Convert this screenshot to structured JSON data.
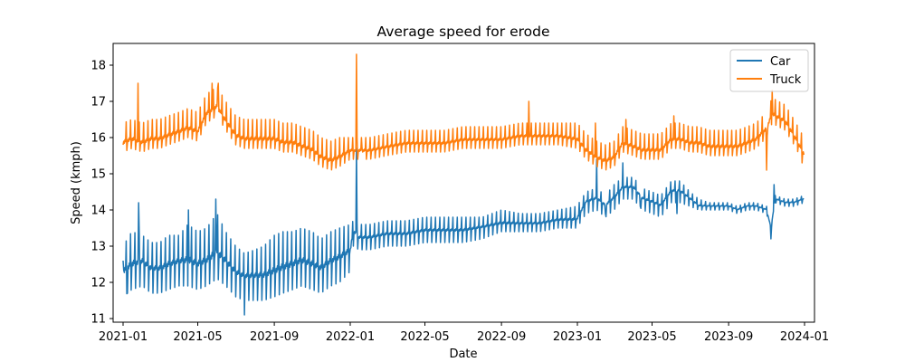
{
  "chart_data": {
    "type": "line",
    "title": "Average speed for erode",
    "xlabel": "Date",
    "ylabel": "Speed (kmph)",
    "xlim": [
      "2020-12-16",
      "2024-01-17"
    ],
    "ylim": [
      10.9,
      18.6
    ],
    "x_ticks": [
      "2021-01",
      "2021-05",
      "2021-09",
      "2022-01",
      "2022-05",
      "2022-09",
      "2023-01",
      "2023-05",
      "2023-09",
      "2024-01"
    ],
    "y_ticks": [
      "11",
      "12",
      "13",
      "14",
      "15",
      "16",
      "17",
      "18"
    ],
    "legend_position": "upper right",
    "grid": false,
    "resolution": "daily",
    "series": [
      {
        "name": "Car",
        "color": "#1f77b4",
        "dates": [
          "2021-01-01",
          "2021-01-15",
          "2021-02-01",
          "2021-02-15",
          "2021-03-01",
          "2021-03-15",
          "2021-04-01",
          "2021-04-15",
          "2021-05-01",
          "2021-05-15",
          "2021-06-01",
          "2021-06-15",
          "2021-07-01",
          "2021-07-15",
          "2021-08-01",
          "2021-08-15",
          "2021-09-01",
          "2021-09-15",
          "2021-10-01",
          "2021-10-15",
          "2021-11-01",
          "2021-11-15",
          "2021-12-01",
          "2021-12-15",
          "2022-01-01",
          "2022-01-06",
          "2022-01-15",
          "2022-02-01",
          "2022-03-01",
          "2022-04-01",
          "2022-05-01",
          "2022-06-01",
          "2022-07-01",
          "2022-08-01",
          "2022-09-01",
          "2022-10-01",
          "2022-11-01",
          "2022-12-01",
          "2022-12-31",
          "2023-01-15",
          "2023-02-01",
          "2023-02-15",
          "2023-03-01",
          "2023-03-15",
          "2023-04-01",
          "2023-04-15",
          "2023-05-01",
          "2023-05-15",
          "2023-06-01",
          "2023-06-15",
          "2023-07-01",
          "2023-07-15",
          "2023-08-01",
          "2023-08-15",
          "2023-09-01",
          "2023-09-15",
          "2023-10-01",
          "2023-10-15",
          "2023-11-01",
          "2023-11-08",
          "2023-11-15",
          "2023-12-01",
          "2023-12-15",
          "2023-12-31"
        ],
        "values": [
          12.2,
          12.4,
          12.5,
          12.3,
          12.3,
          12.4,
          12.5,
          12.5,
          12.4,
          12.5,
          12.7,
          12.5,
          12.2,
          12.1,
          12.1,
          12.1,
          12.2,
          12.3,
          12.4,
          12.5,
          12.4,
          12.3,
          12.5,
          12.6,
          12.8,
          13.4,
          13.2,
          13.2,
          13.3,
          13.3,
          13.4,
          13.4,
          13.4,
          13.5,
          13.6,
          13.6,
          13.6,
          13.7,
          13.7,
          14.2,
          14.3,
          14.1,
          14.3,
          14.6,
          14.6,
          14.3,
          14.2,
          14.1,
          14.5,
          14.5,
          14.3,
          14.1,
          14.1,
          14.1,
          14.1,
          14.0,
          14.1,
          14.1,
          14.0,
          13.5,
          14.3,
          14.2,
          14.2,
          14.3
        ],
        "weekly_dip": [
          0.6,
          0.6,
          0.6,
          0.6,
          0.6,
          0.6,
          0.6,
          0.6,
          0.6,
          0.6,
          0.6,
          0.6,
          0.6,
          0.6,
          0.6,
          0.6,
          0.6,
          0.6,
          0.6,
          0.6,
          0.6,
          0.6,
          0.6,
          0.6,
          0.5,
          0.4,
          0.3,
          0.3,
          0.3,
          0.3,
          0.3,
          0.3,
          0.3,
          0.3,
          0.2,
          0.2,
          0.2,
          0.2,
          0.2,
          0.3,
          0.3,
          0.3,
          0.3,
          0.3,
          0.3,
          0.3,
          0.3,
          0.3,
          0.3,
          0.3,
          0.2,
          0.1,
          0.1,
          0.1,
          0.1,
          0.1,
          0.1,
          0.1,
          0.1,
          0.1,
          0.1,
          0.1,
          0.1,
          0.1
        ],
        "weekly_peak": [
          0.8,
          1.0,
          0.8,
          0.8,
          0.8,
          0.9,
          0.8,
          1.1,
          1.0,
          1.0,
          1.2,
          0.9,
          0.8,
          0.7,
          0.8,
          0.9,
          1.1,
          1.1,
          1.0,
          1.0,
          1.0,
          0.9,
          0.9,
          0.9,
          0.8,
          0.3,
          0.4,
          0.4,
          0.4,
          0.4,
          0.4,
          0.4,
          0.4,
          0.3,
          0.4,
          0.3,
          0.3,
          0.3,
          0.4,
          0.3,
          0.3,
          0.3,
          0.4,
          0.3,
          0.3,
          0.3,
          0.3,
          0.3,
          0.3,
          0.3,
          0.2,
          0.2,
          0.1,
          0.1,
          0.1,
          0.1,
          0.1,
          0.1,
          0.1,
          0.1,
          0.1,
          0.1,
          0.1,
          0.1
        ],
        "spikes": [
          {
            "date": "2021-01-01",
            "value": 12.6
          },
          {
            "date": "2021-01-08",
            "value": 11.7
          },
          {
            "date": "2021-01-26",
            "value": 14.2
          },
          {
            "date": "2021-05-30",
            "value": 14.3
          },
          {
            "date": "2021-04-16",
            "value": 14.0
          },
          {
            "date": "2021-07-15",
            "value": 11.1
          },
          {
            "date": "2022-01-11",
            "value": 15.7
          },
          {
            "date": "2023-02-01",
            "value": 15.4
          },
          {
            "date": "2023-02-15",
            "value": 13.9
          },
          {
            "date": "2023-03-15",
            "value": 15.3
          },
          {
            "date": "2023-04-12",
            "value": 14.1
          },
          {
            "date": "2023-06-10",
            "value": 13.9
          },
          {
            "date": "2023-11-08",
            "value": 13.2
          },
          {
            "date": "2023-11-13",
            "value": 14.7
          }
        ]
      },
      {
        "name": "Truck",
        "color": "#ff7f0e",
        "dates": [
          "2021-01-01",
          "2021-01-15",
          "2021-02-01",
          "2021-02-15",
          "2021-03-01",
          "2021-03-15",
          "2021-04-01",
          "2021-04-15",
          "2021-05-01",
          "2021-05-15",
          "2021-06-01",
          "2021-06-15",
          "2021-07-01",
          "2021-07-15",
          "2021-08-01",
          "2021-08-15",
          "2021-09-01",
          "2021-09-15",
          "2021-10-01",
          "2021-10-15",
          "2021-11-01",
          "2021-11-15",
          "2021-12-01",
          "2021-12-15",
          "2022-01-01",
          "2022-01-15",
          "2022-02-01",
          "2022-03-01",
          "2022-04-01",
          "2022-05-01",
          "2022-06-01",
          "2022-07-01",
          "2022-08-01",
          "2022-09-01",
          "2022-10-01",
          "2022-11-01",
          "2022-12-01",
          "2023-01-01",
          "2023-01-15",
          "2023-02-01",
          "2023-02-15",
          "2023-03-01",
          "2023-03-15",
          "2023-04-01",
          "2023-04-15",
          "2023-05-01",
          "2023-05-15",
          "2023-06-01",
          "2023-06-15",
          "2023-07-01",
          "2023-07-15",
          "2023-08-01",
          "2023-08-15",
          "2023-09-01",
          "2023-09-15",
          "2023-10-01",
          "2023-10-15",
          "2023-11-01",
          "2023-11-10",
          "2023-11-20",
          "2023-12-01",
          "2023-12-15",
          "2023-12-31"
        ],
        "values": [
          15.8,
          15.9,
          15.8,
          15.9,
          15.9,
          16.0,
          16.1,
          16.2,
          16.1,
          16.6,
          16.8,
          16.4,
          16.0,
          15.9,
          15.9,
          15.9,
          15.9,
          15.8,
          15.8,
          15.7,
          15.6,
          15.4,
          15.3,
          15.4,
          15.6,
          15.6,
          15.6,
          15.7,
          15.8,
          15.8,
          15.8,
          15.9,
          15.9,
          15.9,
          16.0,
          16.0,
          16.0,
          15.9,
          15.6,
          15.4,
          15.3,
          15.4,
          15.8,
          15.7,
          15.6,
          15.6,
          15.6,
          15.9,
          15.9,
          15.8,
          15.8,
          15.7,
          15.7,
          15.7,
          15.7,
          15.8,
          15.9,
          16.2,
          16.6,
          16.5,
          16.4,
          16.0,
          15.5
        ],
        "weekly_dip": [
          0.2,
          0.2,
          0.2,
          0.2,
          0.2,
          0.2,
          0.2,
          0.2,
          0.2,
          0.2,
          0.2,
          0.2,
          0.2,
          0.2,
          0.2,
          0.2,
          0.2,
          0.2,
          0.2,
          0.2,
          0.2,
          0.2,
          0.2,
          0.2,
          0.2,
          0.2,
          0.2,
          0.2,
          0.2,
          0.2,
          0.2,
          0.2,
          0.2,
          0.2,
          0.2,
          0.2,
          0.2,
          0.2,
          0.2,
          0.2,
          0.2,
          0.2,
          0.2,
          0.2,
          0.2,
          0.2,
          0.2,
          0.2,
          0.2,
          0.2,
          0.2,
          0.2,
          0.2,
          0.2,
          0.2,
          0.2,
          0.2,
          0.2,
          0.2,
          0.2,
          0.2,
          0.2,
          0.2
        ],
        "weekly_peak": [
          0.6,
          0.6,
          0.6,
          0.6,
          0.6,
          0.6,
          0.6,
          0.6,
          0.6,
          0.6,
          0.6,
          0.6,
          0.6,
          0.6,
          0.6,
          0.6,
          0.6,
          0.6,
          0.6,
          0.6,
          0.6,
          0.6,
          0.6,
          0.6,
          0.4,
          0.4,
          0.4,
          0.4,
          0.4,
          0.4,
          0.4,
          0.4,
          0.4,
          0.4,
          0.4,
          0.4,
          0.4,
          0.5,
          0.5,
          0.5,
          0.5,
          0.5,
          0.5,
          0.5,
          0.5,
          0.5,
          0.5,
          0.5,
          0.5,
          0.5,
          0.5,
          0.5,
          0.5,
          0.5,
          0.5,
          0.5,
          0.5,
          0.5,
          0.5,
          0.5,
          0.5,
          0.5,
          0.5
        ],
        "spikes": [
          {
            "date": "2021-01-25",
            "value": 17.5
          },
          {
            "date": "2021-05-24",
            "value": 17.5
          },
          {
            "date": "2021-06-03",
            "value": 17.5
          },
          {
            "date": "2022-01-11",
            "value": 18.3
          },
          {
            "date": "2022-01-20",
            "value": 15.7
          },
          {
            "date": "2022-10-15",
            "value": 17.0
          },
          {
            "date": "2023-01-30",
            "value": 16.4
          },
          {
            "date": "2023-03-20",
            "value": 16.5
          },
          {
            "date": "2023-06-05",
            "value": 16.6
          },
          {
            "date": "2023-11-01",
            "value": 15.1
          },
          {
            "date": "2023-11-10",
            "value": 17.3
          },
          {
            "date": "2023-12-28",
            "value": 15.3
          }
        ]
      }
    ]
  }
}
